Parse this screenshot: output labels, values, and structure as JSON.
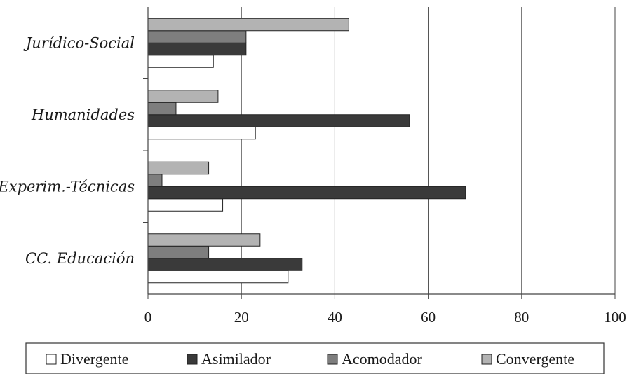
{
  "chart_data": {
    "type": "bar",
    "orientation": "horizontal",
    "categories": [
      "Jurídico-Social",
      "Humanidades",
      "Experim.-Técnicas",
      "CC. Educación"
    ],
    "series": [
      {
        "name": "Divergente",
        "values": [
          14,
          23,
          16,
          30
        ],
        "color": "#ffffff"
      },
      {
        "name": "Asimilador",
        "values": [
          21,
          56,
          68,
          33
        ],
        "color": "#3a3a3a"
      },
      {
        "name": "Acomodador",
        "values": [
          21,
          6,
          3,
          13
        ],
        "color": "#7e7e7e"
      },
      {
        "name": "Convergente",
        "values": [
          43,
          15,
          13,
          24
        ],
        "color": "#b3b3b3"
      }
    ],
    "xlim": [
      0,
      100
    ],
    "xticks": [
      "0",
      "20",
      "40",
      "60",
      "80",
      "100"
    ],
    "grid": "vertical",
    "legend_position": "bottom",
    "title": "",
    "xlabel": "",
    "ylabel": ""
  }
}
